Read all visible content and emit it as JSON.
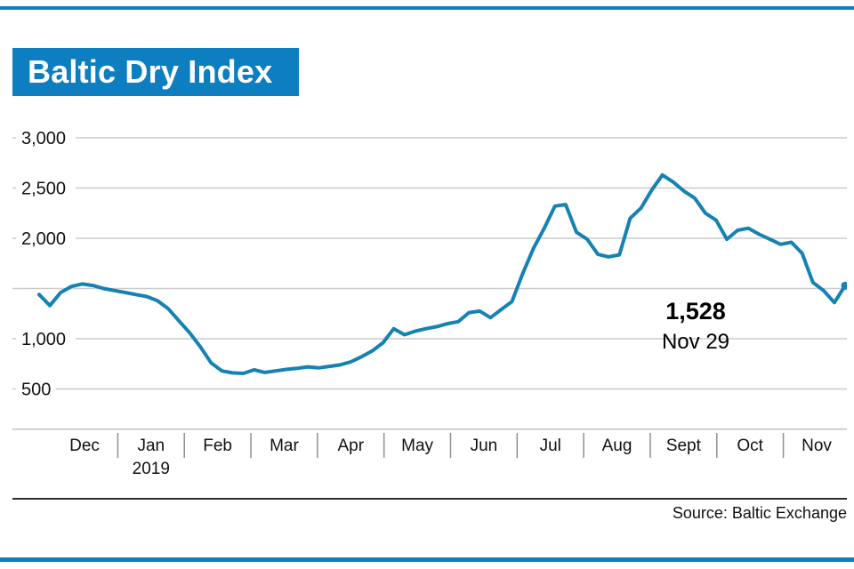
{
  "header": {
    "title": "Baltic Dry Index"
  },
  "footer": {
    "source": "Source: Baltic Exchange"
  },
  "colors": {
    "accent": "#0d7ec0",
    "line": "#1682b2",
    "grid": "#cccccc",
    "baseline": "#c4c4c4",
    "tick": "#8f8f8f",
    "text": "#111111"
  },
  "chart_data": {
    "type": "line",
    "title": "Baltic Dry Index",
    "x_months": [
      "Dec",
      "Jan",
      "Feb",
      "Mar",
      "Apr",
      "May",
      "Jun",
      "Jul",
      "Aug",
      "Sept",
      "Oct",
      "Nov"
    ],
    "year_label": "2019",
    "year_under_month": "Jan",
    "y_ticks": [
      {
        "value": 3000,
        "label": "3,000"
      },
      {
        "value": 2500,
        "label": "2,500"
      },
      {
        "value": 2000,
        "label": "2,000"
      },
      {
        "value": 1500,
        "label": ""
      },
      {
        "value": 1000,
        "label": "1,000"
      },
      {
        "value": 500,
        "label": "500"
      }
    ],
    "ylim": [
      100,
      3200
    ],
    "values": [
      1440,
      1330,
      1460,
      1520,
      1545,
      1530,
      1500,
      1480,
      1460,
      1440,
      1420,
      1380,
      1300,
      1180,
      1060,
      920,
      760,
      680,
      660,
      655,
      690,
      665,
      680,
      695,
      705,
      720,
      710,
      725,
      740,
      770,
      820,
      880,
      960,
      1100,
      1040,
      1075,
      1100,
      1120,
      1150,
      1170,
      1260,
      1275,
      1210,
      1290,
      1370,
      1650,
      1900,
      2100,
      2320,
      2335,
      2060,
      1990,
      1840,
      1815,
      1835,
      2200,
      2300,
      2480,
      2630,
      2560,
      2470,
      2400,
      2250,
      2180,
      1990,
      2080,
      2100,
      2040,
      1990,
      1940,
      1960,
      1850,
      1560,
      1480,
      1360,
      1528
    ],
    "annotation": {
      "value": 1528,
      "value_label": "1,528",
      "date_label": "Nov 29"
    },
    "last_point": {
      "value": 1528,
      "date": "Nov 29"
    }
  }
}
